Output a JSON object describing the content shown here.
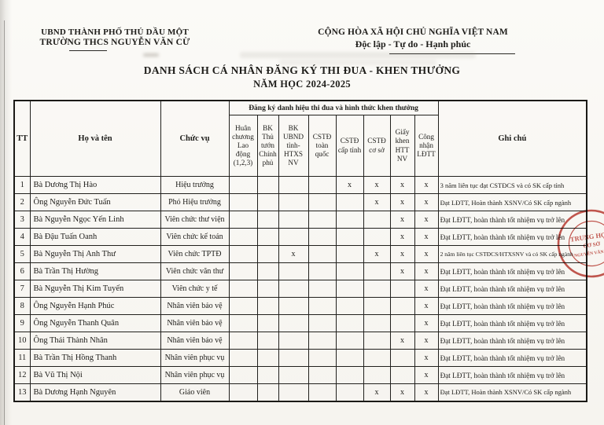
{
  "document": {
    "org": {
      "line1": "UBND THÀNH PHỐ THỦ DẦU MỘT",
      "line2": "TRƯỜNG THCS NGUYỄN VĂN CỪ"
    },
    "national": {
      "line1": "CỘNG HÒA XÃ HỘI CHỦ NGHĨA VIỆT NAM",
      "line2": "Độc lập - Tự do - Hạnh phúc"
    },
    "title": {
      "line1": "DANH SÁCH CÁ NHÂN ĐĂNG KÝ THI ĐUA - KHEN THƯỞNG",
      "line2": "NĂM HỌC 2024-2025"
    }
  },
  "table": {
    "group_header": "Đăng ký danh hiệu thi đua và hình thức khen thưởng",
    "fixed_columns": {
      "tt": "TT",
      "name": "Họ và tên",
      "position": "Chức vụ",
      "note": "Ghi chú"
    },
    "award_columns": [
      "Huân chương Lao động (1,2,3)",
      "BK Thủ tướn Chính phủ",
      "BK UBND tỉnh- HTXS NV",
      "CSTĐ toàn quốc",
      "CSTĐ cấp tỉnh",
      "CSTĐ cơ sở",
      "Giấy khen HTT NV",
      "Công nhận LĐTT"
    ],
    "mark_symbol": "x",
    "rows": [
      {
        "tt": "1",
        "name": "Bà Dương Thị Hào",
        "position": "Hiệu trưởng",
        "marks": [
          "",
          "",
          "",
          "",
          "x",
          "x",
          "x",
          "x"
        ],
        "note": "3 năm liên tục đạt CSTĐCS và có SK cấp tỉnh"
      },
      {
        "tt": "2",
        "name": "Ông Nguyễn Đức Tuấn",
        "position": "Phó Hiệu trưởng",
        "marks": [
          "",
          "",
          "",
          "",
          "",
          "x",
          "x",
          "x"
        ],
        "note": "Đạt LĐTT, Hoàn thành XSNV/Có SK cấp ngành"
      },
      {
        "tt": "3",
        "name": "Bà Nguyễn Ngọc Yến Linh",
        "position": "Viên chức thư viện",
        "marks": [
          "",
          "",
          "",
          "",
          "",
          "",
          "x",
          "x"
        ],
        "note": "Đạt LĐTT, hoàn thành tốt nhiệm vụ trở lên"
      },
      {
        "tt": "4",
        "name": "Bà Đậu Tuấn Oanh",
        "position": "Viên chức kế toán",
        "marks": [
          "",
          "",
          "",
          "",
          "",
          "",
          "x",
          "x"
        ],
        "note": "Đạt LĐTT, hoàn thành tốt nhiệm vụ trở lên"
      },
      {
        "tt": "5",
        "name": "Bà Nguyễn Thị Anh Thư",
        "position": "Viên chức TPTĐ",
        "marks": [
          "",
          "",
          "x",
          "",
          "",
          "x",
          "x",
          "x"
        ],
        "note": "2 năm liên tục CSTĐCS/HTXSNV và có SK cấp ngành"
      },
      {
        "tt": "6",
        "name": "Bà Trần Thị Hường",
        "position": "Viên chức văn thư",
        "marks": [
          "",
          "",
          "",
          "",
          "",
          "",
          "x",
          "x"
        ],
        "note": "Đạt LĐTT, hoàn thành tốt nhiệm vụ trở lên"
      },
      {
        "tt": "7",
        "name": "Bà Nguyễn Thị Kim Tuyến",
        "position": "Viên chức y tế",
        "marks": [
          "",
          "",
          "",
          "",
          "",
          "",
          "",
          "x"
        ],
        "note": "Đạt LĐTT, hoàn thành tốt nhiệm vụ trở lên"
      },
      {
        "tt": "8",
        "name": "Ông Nguyễn Hạnh Phúc",
        "position": "Nhân viên bảo vệ",
        "marks": [
          "",
          "",
          "",
          "",
          "",
          "",
          "",
          "x"
        ],
        "note": "Đạt LĐTT, hoàn thành tốt nhiệm vụ trở lên"
      },
      {
        "tt": "9",
        "name": "Ông Nguyễn Thanh Quân",
        "position": "Nhân viên bảo vệ",
        "marks": [
          "",
          "",
          "",
          "",
          "",
          "",
          "",
          "x"
        ],
        "note": "Đạt LĐTT, hoàn thành tốt nhiệm vụ trở lên"
      },
      {
        "tt": "10",
        "name": "Ông Thái Thành Nhân",
        "position": "Nhân viên bảo vệ",
        "marks": [
          "",
          "",
          "",
          "",
          "",
          "",
          "x",
          "x"
        ],
        "note": "Đạt LĐTT, hoàn thành tốt nhiệm vụ trở lên"
      },
      {
        "tt": "11",
        "name": "Bà Trần Thị Hồng Thanh",
        "position": "Nhân viên phục vụ",
        "marks": [
          "",
          "",
          "",
          "",
          "",
          "",
          "",
          "x"
        ],
        "note": "Đạt LĐTT, hoàn thành tốt nhiệm vụ trở lên"
      },
      {
        "tt": "12",
        "name": "Bà Vũ Thị Nội",
        "position": "Nhân viên phục vụ",
        "marks": [
          "",
          "",
          "",
          "",
          "",
          "",
          "",
          "x"
        ],
        "note": "Đạt LĐTT, hoàn thành tốt nhiệm vụ trở lên"
      },
      {
        "tt": "13",
        "name": "Bà Dương Hạnh Nguyên",
        "position": "Giáo viên",
        "marks": [
          "",
          "",
          "",
          "",
          "",
          "x",
          "x",
          "x"
        ],
        "note": "Đạt LĐTT, Hoàn thành XSNV/Có SK cấp ngành"
      }
    ]
  },
  "stamp": {
    "lines": [
      "TRUNG HỌC",
      "CƠ SỞ",
      "NGUYỄN VĂN CỪ"
    ],
    "color": "#b5291f"
  }
}
